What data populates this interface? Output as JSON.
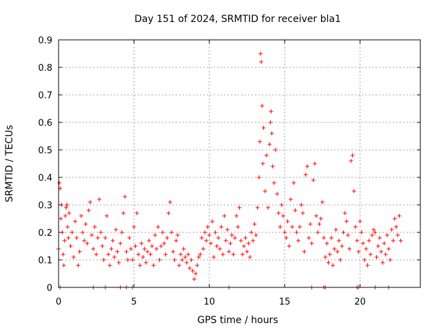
{
  "chart_data": {
    "type": "scatter",
    "title": "Day 151 of 2024, SRMTID for receiver bla1",
    "xlabel": "GPS time / hours",
    "ylabel": "SRMTID / TECUs",
    "xlim": [
      0,
      24
    ],
    "ylim": [
      0,
      0.9
    ],
    "xticks": [
      0,
      5,
      10,
      15,
      20
    ],
    "yticks": [
      0,
      0.1,
      0.2,
      0.3,
      0.4,
      0.5,
      0.6,
      0.7,
      0.8,
      0.9
    ],
    "xtick_labels": [
      "0",
      "5",
      "10",
      "15",
      "20"
    ],
    "ytick_labels": [
      "0",
      "0.1",
      "0.2",
      "0.3",
      "0.4",
      "0.5",
      "0.6",
      "0.7",
      "0.8",
      "0.9"
    ],
    "grid": true,
    "marker": "+",
    "color": "#ff0000",
    "series": [
      {
        "name": "SRMTID",
        "points": [
          [
            0.0,
            0.14
          ],
          [
            0.05,
            0.38
          ],
          [
            0.1,
            0.36
          ],
          [
            0.15,
            0.25
          ],
          [
            0.2,
            0.3
          ],
          [
            0.25,
            0.2
          ],
          [
            0.3,
            0.12
          ],
          [
            0.35,
            0.08
          ],
          [
            0.4,
            0.17
          ],
          [
            0.45,
            0.26
          ],
          [
            0.5,
            0.29
          ],
          [
            0.55,
            0.3
          ],
          [
            0.6,
            0.22
          ],
          [
            0.65,
            0.18
          ],
          [
            0.7,
            0.27
          ],
          [
            0.8,
            0.15
          ],
          [
            0.9,
            0.2
          ],
          [
            1.0,
            0.11
          ],
          [
            1.1,
            0.24
          ],
          [
            1.2,
            0.18
          ],
          [
            1.3,
            0.08
          ],
          [
            1.4,
            0.13
          ],
          [
            1.5,
            0.26
          ],
          [
            1.6,
            0.2
          ],
          [
            1.7,
            0.17
          ],
          [
            1.8,
            0.23
          ],
          [
            1.9,
            0.16
          ],
          [
            2.0,
            0.28
          ],
          [
            2.1,
            0.31
          ],
          [
            2.2,
            0.19
          ],
          [
            2.3,
            0.14
          ],
          [
            2.4,
            0.22
          ],
          [
            2.5,
            0.12
          ],
          [
            2.6,
            0.18
          ],
          [
            2.7,
            0.32
          ],
          [
            2.8,
            0.2
          ],
          [
            2.9,
            0.15
          ],
          [
            3.0,
            0.1
          ],
          [
            3.1,
            0.18
          ],
          [
            3.2,
            0.26
          ],
          [
            3.3,
            0.12
          ],
          [
            3.4,
            0.08
          ],
          [
            3.5,
            0.14
          ],
          [
            3.6,
            0.17
          ],
          [
            3.7,
            0.11
          ],
          [
            3.8,
            0.21
          ],
          [
            3.9,
            0.13
          ],
          [
            4.0,
            0.09
          ],
          [
            4.1,
            0.16
          ],
          [
            4.2,
            0.2
          ],
          [
            4.3,
            0.27
          ],
          [
            4.4,
            0.33
          ],
          [
            4.5,
            0.13
          ],
          [
            4.6,
            0.1
          ],
          [
            4.7,
            0.18
          ],
          [
            4.8,
            0.14
          ],
          [
            4.9,
            0.1
          ],
          [
            5.0,
            0.22
          ],
          [
            5.1,
            0.15
          ],
          [
            5.2,
            0.27
          ],
          [
            5.3,
            0.12
          ],
          [
            5.4,
            0.08
          ],
          [
            5.5,
            0.16
          ],
          [
            5.6,
            0.11
          ],
          [
            5.7,
            0.14
          ],
          [
            5.8,
            0.09
          ],
          [
            5.9,
            0.13
          ],
          [
            6.0,
            0.17
          ],
          [
            6.1,
            0.12
          ],
          [
            6.2,
            0.15
          ],
          [
            6.3,
            0.08
          ],
          [
            6.4,
            0.19
          ],
          [
            6.5,
            0.14
          ],
          [
            6.6,
            0.22
          ],
          [
            6.7,
            0.1
          ],
          [
            6.8,
            0.15
          ],
          [
            6.9,
            0.2
          ],
          [
            7.0,
            0.16
          ],
          [
            7.1,
            0.12
          ],
          [
            7.2,
            0.18
          ],
          [
            7.3,
            0.27
          ],
          [
            7.4,
            0.31
          ],
          [
            7.5,
            0.2
          ],
          [
            7.6,
            0.13
          ],
          [
            7.7,
            0.1
          ],
          [
            7.8,
            0.17
          ],
          [
            7.9,
            0.19
          ],
          [
            8.0,
            0.08
          ],
          [
            8.1,
            0.12
          ],
          [
            8.2,
            0.1
          ],
          [
            8.3,
            0.14
          ],
          [
            8.4,
            0.11
          ],
          [
            8.5,
            0.09
          ],
          [
            8.6,
            0.12
          ],
          [
            8.7,
            0.07
          ],
          [
            8.8,
            0.1
          ],
          [
            8.9,
            0.06
          ],
          [
            9.0,
            0.03
          ],
          [
            9.1,
            0.05
          ],
          [
            9.2,
            0.08
          ],
          [
            9.3,
            0.11
          ],
          [
            9.4,
            0.12
          ],
          [
            9.5,
            0.18
          ],
          [
            9.6,
            0.14
          ],
          [
            9.7,
            0.2
          ],
          [
            9.8,
            0.17
          ],
          [
            9.9,
            0.22
          ],
          [
            10.0,
            0.19
          ],
          [
            10.1,
            0.16
          ],
          [
            10.2,
            0.24
          ],
          [
            10.3,
            0.11
          ],
          [
            10.4,
            0.2
          ],
          [
            10.5,
            0.15
          ],
          [
            10.6,
            0.18
          ],
          [
            10.7,
            0.14
          ],
          [
            10.8,
            0.22
          ],
          [
            10.9,
            0.12
          ],
          [
            11.0,
            0.26
          ],
          [
            11.1,
            0.17
          ],
          [
            11.2,
            0.21
          ],
          [
            11.3,
            0.13
          ],
          [
            11.4,
            0.16
          ],
          [
            11.5,
            0.19
          ],
          [
            11.6,
            0.12
          ],
          [
            11.7,
            0.18
          ],
          [
            11.8,
            0.26
          ],
          [
            11.9,
            0.22
          ],
          [
            12.0,
            0.29
          ],
          [
            12.1,
            0.17
          ],
          [
            12.2,
            0.12
          ],
          [
            12.3,
            0.15
          ],
          [
            12.4,
            0.18
          ],
          [
            12.5,
            0.13
          ],
          [
            12.6,
            0.16
          ],
          [
            12.7,
            0.11
          ],
          [
            12.8,
            0.2
          ],
          [
            12.9,
            0.17
          ],
          [
            13.0,
            0.23
          ],
          [
            13.1,
            0.19
          ],
          [
            13.2,
            0.29
          ],
          [
            13.3,
            0.4
          ],
          [
            13.35,
            0.53
          ],
          [
            13.4,
            0.85
          ],
          [
            13.45,
            0.82
          ],
          [
            13.5,
            0.66
          ],
          [
            13.55,
            0.45
          ],
          [
            13.6,
            0.58
          ],
          [
            13.7,
            0.35
          ],
          [
            13.8,
            0.48
          ],
          [
            13.9,
            0.29
          ],
          [
            14.0,
            0.52
          ],
          [
            14.05,
            0.6
          ],
          [
            14.1,
            0.64
          ],
          [
            14.15,
            0.56
          ],
          [
            14.2,
            0.44
          ],
          [
            14.3,
            0.38
          ],
          [
            14.4,
            0.5
          ],
          [
            14.5,
            0.34
          ],
          [
            14.6,
            0.27
          ],
          [
            14.7,
            0.22
          ],
          [
            14.8,
            0.3
          ],
          [
            14.9,
            0.26
          ],
          [
            15.0,
            0.2
          ],
          [
            15.1,
            0.18
          ],
          [
            15.2,
            0.24
          ],
          [
            15.3,
            0.15
          ],
          [
            15.4,
            0.32
          ],
          [
            15.5,
            0.22
          ],
          [
            15.6,
            0.38
          ],
          [
            15.7,
            0.28
          ],
          [
            15.8,
            0.2
          ],
          [
            15.9,
            0.17
          ],
          [
            16.0,
            0.22
          ],
          [
            16.1,
            0.3
          ],
          [
            16.2,
            0.27
          ],
          [
            16.3,
            0.13
          ],
          [
            16.4,
            0.41
          ],
          [
            16.5,
            0.44
          ],
          [
            16.6,
            0.18
          ],
          [
            16.7,
            0.23
          ],
          [
            16.8,
            0.16
          ],
          [
            16.9,
            0.39
          ],
          [
            17.0,
            0.45
          ],
          [
            17.1,
            0.26
          ],
          [
            17.2,
            0.2
          ],
          [
            17.3,
            0.23
          ],
          [
            17.4,
            0.25
          ],
          [
            17.5,
            0.31
          ],
          [
            17.6,
            0.18
          ],
          [
            17.7,
            0.11
          ],
          [
            17.8,
            0.16
          ],
          [
            17.9,
            0.09
          ],
          [
            18.0,
            0.12
          ],
          [
            18.1,
            0.18
          ],
          [
            18.2,
            0.08
          ],
          [
            18.3,
            0.14
          ],
          [
            18.4,
            0.21
          ],
          [
            18.5,
            0.13
          ],
          [
            18.6,
            0.17
          ],
          [
            18.7,
            0.1
          ],
          [
            18.8,
            0.15
          ],
          [
            18.9,
            0.2
          ],
          [
            19.0,
            0.27
          ],
          [
            19.1,
            0.24
          ],
          [
            19.2,
            0.19
          ],
          [
            19.3,
            0.14
          ],
          [
            19.4,
            0.46
          ],
          [
            19.5,
            0.48
          ],
          [
            19.6,
            0.35
          ],
          [
            19.7,
            0.22
          ],
          [
            19.8,
            0.17
          ],
          [
            19.9,
            0.13
          ],
          [
            20.0,
            0.24
          ],
          [
            20.1,
            0.2
          ],
          [
            20.2,
            0.16
          ],
          [
            20.3,
            0.1
          ],
          [
            20.4,
            0.14
          ],
          [
            20.5,
            0.08
          ],
          [
            20.6,
            0.17
          ],
          [
            20.7,
            0.12
          ],
          [
            20.8,
            0.19
          ],
          [
            20.9,
            0.21
          ],
          [
            21.0,
            0.2
          ],
          [
            21.1,
            0.11
          ],
          [
            21.2,
            0.15
          ],
          [
            21.3,
            0.18
          ],
          [
            21.4,
            0.13
          ],
          [
            21.5,
            0.09
          ],
          [
            21.6,
            0.16
          ],
          [
            21.7,
            0.12
          ],
          [
            21.8,
            0.19
          ],
          [
            21.9,
            0.14
          ],
          [
            22.0,
            0.1
          ],
          [
            22.1,
            0.21
          ],
          [
            22.2,
            0.17
          ],
          [
            22.3,
            0.25
          ],
          [
            22.4,
            0.22
          ],
          [
            22.5,
            0.19
          ],
          [
            22.6,
            0.26
          ],
          [
            22.7,
            0.17
          ],
          [
            0.1,
            0.0
          ],
          [
            2.3,
            0.0
          ],
          [
            3.1,
            0.0
          ],
          [
            4.1,
            0.0
          ],
          [
            4.5,
            0.0
          ],
          [
            4.9,
            0.0
          ],
          [
            11.3,
            0.0
          ],
          [
            16.8,
            0.0
          ],
          [
            17.6,
            0.0
          ],
          [
            17.7,
            0.0
          ],
          [
            19.8,
            0.0
          ],
          [
            19.9,
            0.0
          ],
          [
            21.0,
            0.0
          ],
          [
            21.9,
            0.0
          ]
        ]
      }
    ]
  }
}
